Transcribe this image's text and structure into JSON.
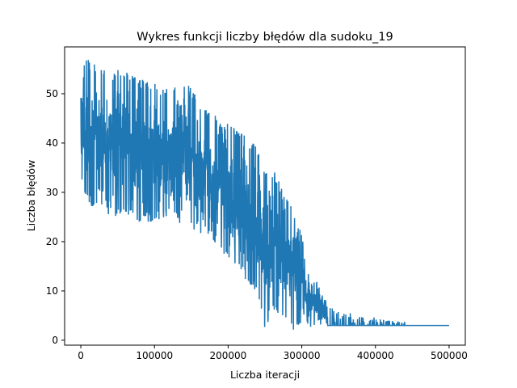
{
  "chart_data": {
    "type": "line",
    "title": "Wykres funkcji liczby błędów dla sudoku_19",
    "xlabel": "Liczba iteracji",
    "ylabel": "Liczba błędów",
    "xlim": [
      -22000,
      522000
    ],
    "ylim": [
      -1,
      59.5
    ],
    "xticks": [
      0,
      100000,
      200000,
      300000,
      400000,
      500000
    ],
    "xtick_labels": [
      "0",
      "100000",
      "200000",
      "300000",
      "400000",
      "500000"
    ],
    "yticks": [
      0,
      10,
      20,
      30,
      40,
      50
    ],
    "ytick_labels": [
      "0",
      "10",
      "20",
      "30",
      "40",
      "50"
    ],
    "grid": false,
    "legend": "none",
    "series": [
      {
        "color": "#1f77b4",
        "envelope": {
          "x": [
            0,
            10000,
            20000,
            40000,
            60000,
            80000,
            100000,
            120000,
            140000,
            160000,
            180000,
            200000,
            220000,
            240000,
            250000,
            260000,
            270000,
            280000,
            290000,
            300000,
            310000,
            320000,
            330000,
            350000,
            380000,
            400000,
            430000,
            450000,
            470000,
            500000
          ],
          "upper": [
            57,
            57,
            56,
            56,
            55,
            53,
            52,
            51,
            53,
            49,
            46,
            44,
            42,
            39,
            35,
            35,
            32,
            30,
            27,
            22,
            13,
            12,
            9,
            7,
            5,
            5,
            4,
            4,
            4,
            3
          ],
          "lower": [
            32,
            27,
            26,
            25,
            25,
            24,
            24,
            25,
            23,
            22,
            20,
            16,
            13,
            9,
            2,
            6,
            5,
            3,
            2,
            2,
            2,
            2,
            3,
            3,
            3,
            3,
            3,
            3,
            3,
            3
          ]
        }
      }
    ]
  }
}
